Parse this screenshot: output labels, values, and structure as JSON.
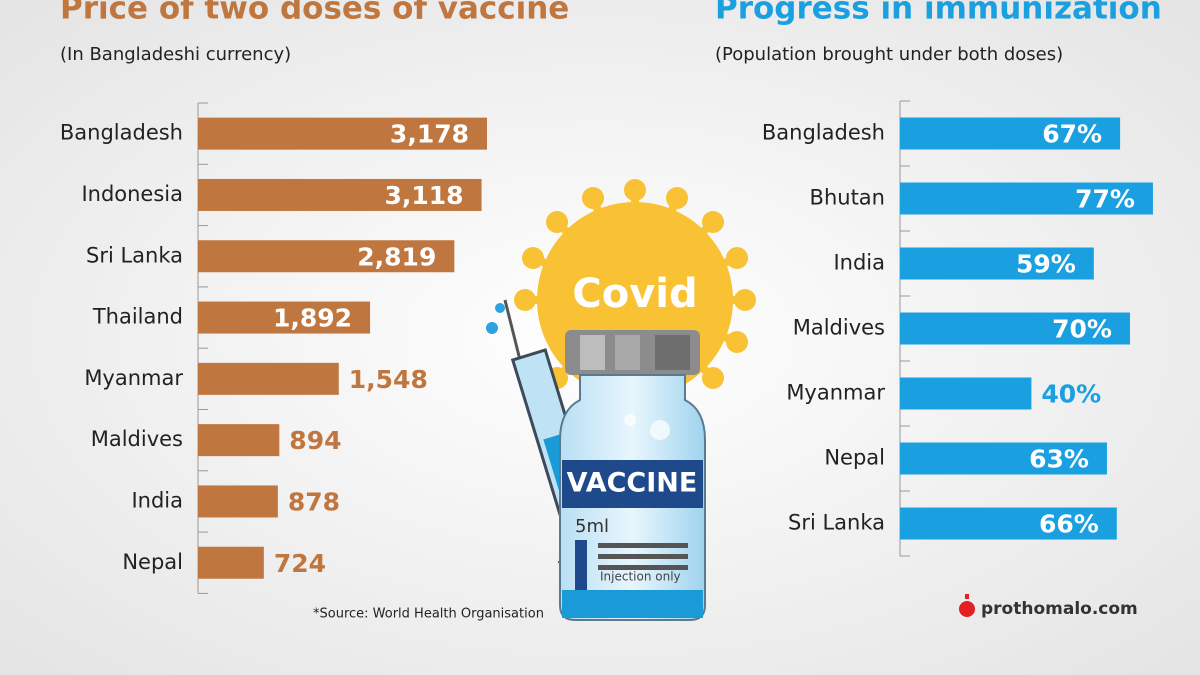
{
  "chart_data": [
    {
      "type": "hbar",
      "title": "Price of two doses of vaccine",
      "subtitle": "(In Bangladeshi currency)",
      "categories": [
        "Bangladesh",
        "Indonesia",
        "Sri Lanka",
        "Thailand",
        "Myanmar",
        "Maldives",
        "India",
        "Nepal"
      ],
      "values": [
        3178,
        3118,
        2819,
        1892,
        1548,
        894,
        878,
        724
      ],
      "value_labels": [
        "3,178",
        "3,118",
        "2,819",
        "1,892",
        "1,548",
        "894",
        "878",
        "724"
      ],
      "color": "#c0763f"
    },
    {
      "type": "hbar",
      "title": "Progress in immunization",
      "subtitle": "(Population brought under both doses)",
      "categories": [
        "Bangladesh",
        "Bhutan",
        "India",
        "Maldives",
        "Myanmar",
        "Nepal",
        "Sri Lanka"
      ],
      "values": [
        67,
        77,
        59,
        70,
        40,
        63,
        66
      ],
      "value_labels": [
        "67%",
        "77%",
        "59%",
        "70%",
        "40%",
        "63%",
        "66%"
      ],
      "color": "#1aa0e0"
    }
  ],
  "illustration": {
    "virus": "Covid",
    "label": "VACCINE",
    "volume": "5ml",
    "note": "Injection only"
  },
  "source": "*Source: World Health Organisation",
  "brand": "prothomalo.com"
}
